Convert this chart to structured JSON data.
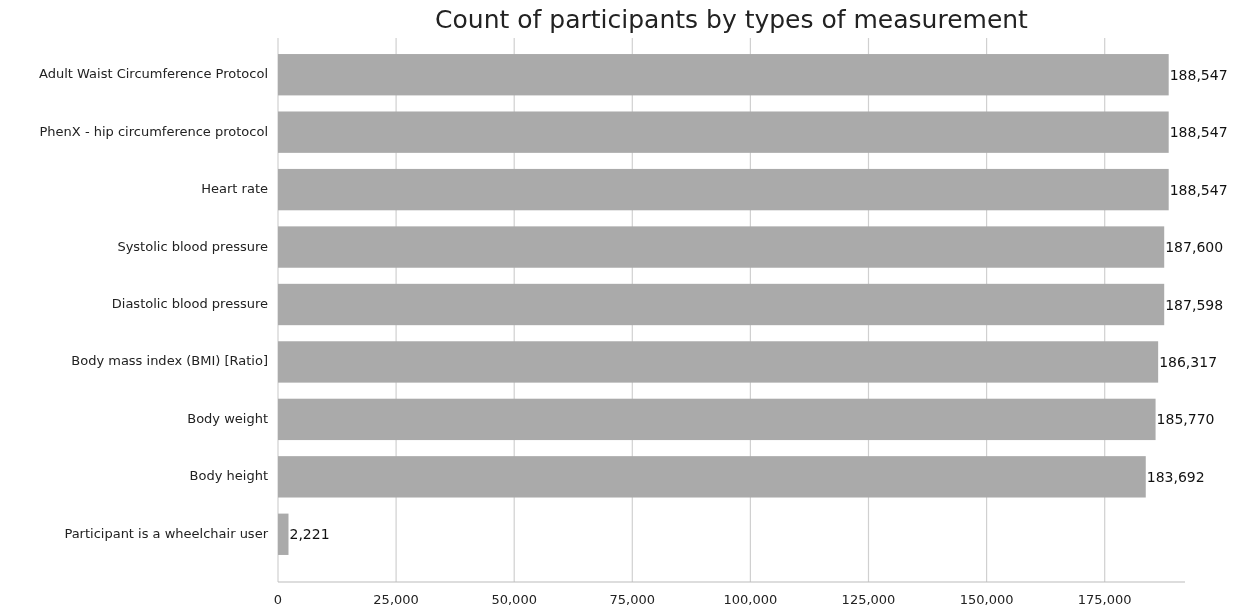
{
  "chart_data": {
    "type": "bar",
    "orientation": "horizontal",
    "title": "Count of participants by types of measurement",
    "categories": [
      "Adult Waist Circumference Protocol",
      "PhenX - hip circumference protocol",
      "Heart rate",
      "Systolic blood pressure",
      "Diastolic blood pressure",
      "Body mass index (BMI) [Ratio]",
      "Body weight",
      "Body height",
      "Participant is a wheelchair user"
    ],
    "values": [
      188547,
      188547,
      188547,
      187600,
      187598,
      186317,
      185770,
      183692,
      2221
    ],
    "color": "#aaaaaa",
    "xlim": [
      0,
      192000
    ],
    "xticks": [
      {
        "value": 0,
        "label": "0"
      },
      {
        "value": 25000,
        "label": "25,000"
      },
      {
        "value": 50000,
        "label": "50,000"
      },
      {
        "value": 75000,
        "label": "75,000"
      },
      {
        "value": 100000,
        "label": "100,000"
      },
      {
        "value": 125000,
        "label": "125,000"
      },
      {
        "value": 150000,
        "label": "150,000"
      },
      {
        "value": 175000,
        "label": "175,000"
      }
    ],
    "value_labels": [
      "188,547",
      "188,547",
      "188,547",
      "187,600",
      "187,598",
      "186,317",
      "185,770",
      "183,692",
      "2,221"
    ],
    "grid": "x"
  }
}
